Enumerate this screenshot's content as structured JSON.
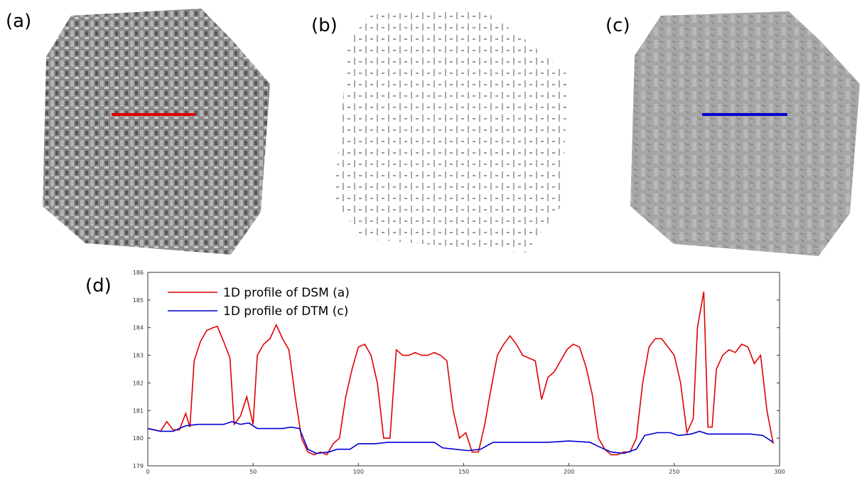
{
  "panels": [
    "(a)",
    "(b)",
    "(c)"
  ],
  "chart_data": {
    "type": "line",
    "panel_label": "(d)",
    "xlim": [
      0,
      300
    ],
    "xticks": [
      0,
      50,
      100,
      150,
      200,
      250,
      300
    ],
    "ylim": [
      179,
      186
    ],
    "yticks": [
      179,
      180,
      181,
      182,
      183,
      184,
      185,
      186
    ],
    "legend": "upper left",
    "series": [
      {
        "name": "1D profile of DSM (a)",
        "color": "#e00000",
        "x": [
          0,
          3,
          6,
          9,
          12,
          15,
          18,
          20,
          22,
          25,
          28,
          31,
          33,
          36,
          39,
          41,
          44,
          47,
          50,
          52,
          55,
          58,
          61,
          64,
          67,
          70,
          73,
          76,
          79,
          82,
          85,
          88,
          91,
          94,
          97,
          100,
          103,
          106,
          109,
          112,
          115,
          118,
          121,
          124,
          127,
          130,
          133,
          136,
          139,
          142,
          145,
          148,
          151,
          154,
          157,
          160,
          163,
          166,
          169,
          172,
          175,
          178,
          181,
          184,
          187,
          190,
          193,
          196,
          199,
          202,
          205,
          208,
          211,
          214,
          217,
          220,
          223,
          226,
          229,
          232,
          235,
          238,
          241,
          244,
          247,
          250,
          253,
          256,
          259,
          261,
          264,
          266,
          268,
          270,
          273,
          276,
          279,
          282,
          285,
          288,
          291,
          294,
          297
        ],
        "values": [
          180.35,
          180.3,
          180.25,
          180.6,
          180.3,
          180.3,
          180.9,
          180.4,
          182.8,
          183.5,
          183.9,
          184.0,
          184.05,
          183.5,
          182.9,
          180.5,
          180.8,
          181.5,
          180.5,
          183.0,
          183.4,
          183.6,
          184.1,
          183.6,
          183.2,
          181.5,
          180.0,
          179.5,
          179.4,
          179.5,
          179.4,
          179.8,
          180.0,
          181.5,
          182.5,
          183.3,
          183.4,
          183.0,
          182.0,
          180.0,
          180.0,
          183.2,
          183.0,
          183.0,
          183.1,
          183.0,
          183.0,
          183.1,
          183.0,
          182.8,
          181.0,
          180.0,
          180.2,
          179.5,
          179.5,
          180.5,
          181.8,
          183.0,
          183.4,
          183.7,
          183.4,
          183.0,
          182.9,
          182.8,
          181.4,
          182.2,
          182.4,
          182.8,
          183.2,
          183.4,
          183.3,
          182.6,
          181.6,
          180.0,
          179.6,
          179.4,
          179.4,
          179.5,
          179.5,
          180.0,
          182.0,
          183.3,
          183.6,
          183.6,
          183.3,
          183.0,
          182.0,
          180.2,
          180.7,
          184.0,
          185.3,
          180.4,
          180.4,
          182.5,
          183.0,
          183.2,
          183.1,
          183.4,
          183.3,
          182.7,
          183.0,
          181.0,
          179.8
        ]
      },
      {
        "name": "1D profile of DTM (c)",
        "color": "#0000d0",
        "x": [
          0,
          6,
          12,
          18,
          24,
          30,
          36,
          40,
          44,
          48,
          52,
          58,
          64,
          68,
          72,
          76,
          80,
          86,
          90,
          96,
          100,
          108,
          114,
          120,
          130,
          136,
          140,
          146,
          152,
          158,
          164,
          170,
          180,
          190,
          200,
          210,
          214,
          220,
          226,
          232,
          236,
          242,
          248,
          252,
          258,
          262,
          266,
          276,
          286,
          292,
          297
        ],
        "values": [
          180.35,
          180.25,
          180.25,
          180.45,
          180.5,
          180.5,
          180.5,
          180.6,
          180.5,
          180.55,
          180.35,
          180.35,
          180.35,
          180.4,
          180.35,
          179.6,
          179.45,
          179.5,
          179.6,
          179.6,
          179.8,
          179.8,
          179.85,
          179.85,
          179.85,
          179.85,
          179.65,
          179.6,
          179.55,
          179.6,
          179.85,
          179.85,
          179.85,
          179.85,
          179.9,
          179.85,
          179.7,
          179.5,
          179.45,
          179.6,
          180.1,
          180.2,
          180.2,
          180.1,
          180.15,
          180.25,
          180.15,
          180.15,
          180.15,
          180.1,
          179.85
        ]
      }
    ]
  }
}
